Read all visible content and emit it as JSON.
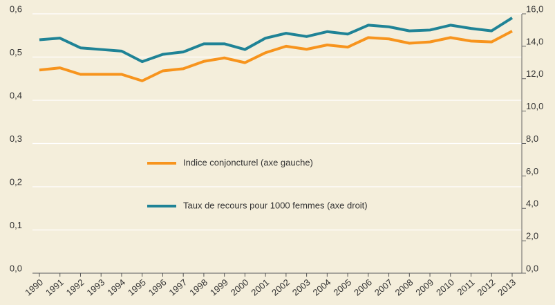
{
  "chart_data": {
    "type": "line",
    "categories": [
      "1990",
      "1991",
      "1992",
      "1993",
      "1994",
      "1995",
      "1996",
      "1997",
      "1998",
      "1999",
      "2000",
      "2001",
      "2002",
      "2003",
      "2004",
      "2005",
      "2006",
      "2007",
      "2008",
      "2009",
      "2010",
      "2011",
      "2012",
      "2013"
    ],
    "series": [
      {
        "name": "Indice conjoncturel (axe gauche)",
        "color": "#f7941d",
        "axis": "y",
        "values": [
          0.47,
          0.475,
          0.46,
          0.46,
          0.46,
          0.445,
          0.468,
          0.473,
          0.49,
          0.498,
          0.487,
          0.51,
          0.525,
          0.518,
          0.528,
          0.523,
          0.545,
          0.542,
          0.532,
          0.535,
          0.545,
          0.537,
          0.535,
          0.56
        ]
      },
      {
        "name": "Taux de recours pour 1000 femmes (axe droit)",
        "color": "#1f8396",
        "axis": "y2",
        "values": [
          14.4,
          14.5,
          13.9,
          13.8,
          13.7,
          13.05,
          13.5,
          13.65,
          14.15,
          14.15,
          13.8,
          14.5,
          14.8,
          14.6,
          14.9,
          14.75,
          15.3,
          15.2,
          14.95,
          15.0,
          15.3,
          15.1,
          14.95,
          15.75
        ]
      }
    ],
    "ylim": [
      0,
      0.6
    ],
    "yticks": [
      {
        "value": 0,
        "label": "0,0"
      },
      {
        "value": 0.1,
        "label": "0,1"
      },
      {
        "value": 0.2,
        "label": "0,2"
      },
      {
        "value": 0.3,
        "label": "0,3"
      },
      {
        "value": 0.4,
        "label": "0,4"
      },
      {
        "value": 0.5,
        "label": "0,5"
      },
      {
        "value": 0.6,
        "label": "0,6"
      }
    ],
    "y2lim": [
      0,
      16
    ],
    "y2ticks": [
      {
        "value": 0,
        "label": "0,0"
      },
      {
        "value": 2,
        "label": "2,0"
      },
      {
        "value": 4,
        "label": "4,0"
      },
      {
        "value": 6,
        "label": "6,0"
      },
      {
        "value": 8,
        "label": "8,0"
      },
      {
        "value": 10,
        "label": "10,0"
      },
      {
        "value": 12,
        "label": "12,0"
      },
      {
        "value": 14,
        "label": "14,0"
      },
      {
        "value": 16,
        "label": "16,0"
      }
    ],
    "grid": true
  }
}
